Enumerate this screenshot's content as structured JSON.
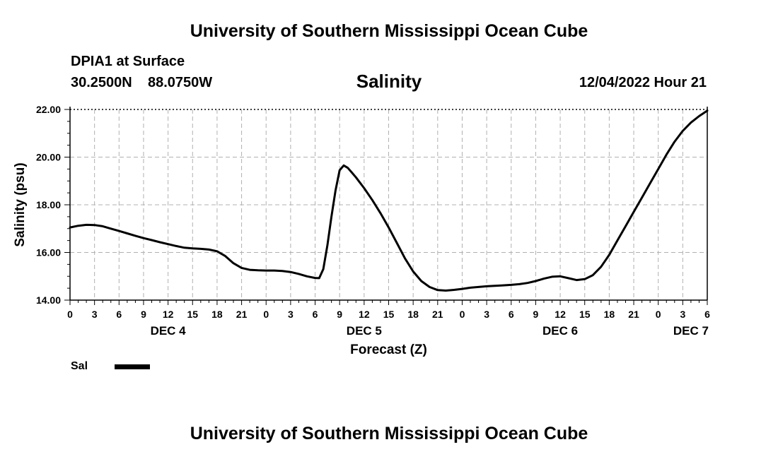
{
  "banner_top": "University of Southern Mississippi Ocean Cube",
  "banner_bottom": "University of Southern Mississippi Ocean Cube",
  "station": {
    "name": "DPIA1 at Surface",
    "lat": "30.2500N",
    "lon": "88.0750W"
  },
  "timestamp": "12/04/2022 Hour 21",
  "colors": {
    "line": "#000000",
    "grid": "#b0b0b0",
    "background": "#ffffff"
  },
  "chart_data": {
    "type": "line",
    "title": "Salinity",
    "xlabel": "Forecast (Z)",
    "ylabel": "Salinity (psu)",
    "ylim": [
      14,
      22
    ],
    "y_ticks": [
      "14.00",
      "16.00",
      "18.00",
      "20.00",
      "22.00"
    ],
    "x_range_hours": [
      0,
      78
    ],
    "x_tick_labels": [
      "0",
      "3",
      "6",
      "9",
      "12",
      "15",
      "18",
      "21",
      "0",
      "3",
      "6",
      "9",
      "12",
      "15",
      "18",
      "21",
      "0",
      "3",
      "6",
      "9",
      "12",
      "15",
      "18",
      "21",
      "0",
      "3",
      "6"
    ],
    "day_labels": [
      {
        "label": "DEC 4",
        "hour": 12
      },
      {
        "label": "DEC 5",
        "hour": 36
      },
      {
        "label": "DEC 6",
        "hour": 60
      },
      {
        "label": "DEC 7",
        "hour": 76
      }
    ],
    "grid": true,
    "legend": [
      {
        "name": "Sal"
      }
    ],
    "series": [
      {
        "name": "Sal",
        "x": [
          0,
          1,
          2,
          3,
          4,
          5,
          6,
          7,
          8,
          9,
          10,
          11,
          12,
          13,
          14,
          15,
          16,
          17,
          18,
          19,
          20,
          21,
          22,
          23,
          24,
          25,
          26,
          27,
          28,
          29,
          30,
          30.5,
          31,
          31.5,
          32,
          32.5,
          33,
          33.5,
          34,
          34.5,
          35,
          36,
          37,
          38,
          39,
          40,
          41,
          42,
          43,
          44,
          45,
          46,
          47,
          48,
          49,
          50,
          51,
          52,
          53,
          54,
          55,
          56,
          57,
          58,
          59,
          60,
          61,
          62,
          63,
          64,
          65,
          66,
          67,
          68,
          69,
          70,
          71,
          72,
          73,
          74,
          75,
          76,
          77,
          78
        ],
        "values": [
          17.05,
          17.12,
          17.16,
          17.15,
          17.1,
          17.0,
          16.9,
          16.8,
          16.7,
          16.6,
          16.52,
          16.43,
          16.35,
          16.27,
          16.2,
          16.17,
          16.15,
          16.12,
          16.05,
          15.85,
          15.55,
          15.35,
          15.27,
          15.25,
          15.24,
          15.24,
          15.22,
          15.18,
          15.1,
          15.0,
          14.93,
          14.92,
          15.3,
          16.3,
          17.5,
          18.6,
          19.45,
          19.65,
          19.55,
          19.35,
          19.15,
          18.7,
          18.2,
          17.65,
          17.05,
          16.4,
          15.75,
          15.2,
          14.8,
          14.55,
          14.42,
          14.4,
          14.43,
          14.47,
          14.52,
          14.55,
          14.58,
          14.6,
          14.62,
          14.64,
          14.67,
          14.72,
          14.8,
          14.9,
          14.98,
          15.0,
          14.92,
          14.84,
          14.88,
          15.05,
          15.4,
          15.9,
          16.5,
          17.1,
          17.7,
          18.3,
          18.9,
          19.5,
          20.1,
          20.65,
          21.1,
          21.45,
          21.72,
          21.95
        ]
      }
    ]
  }
}
